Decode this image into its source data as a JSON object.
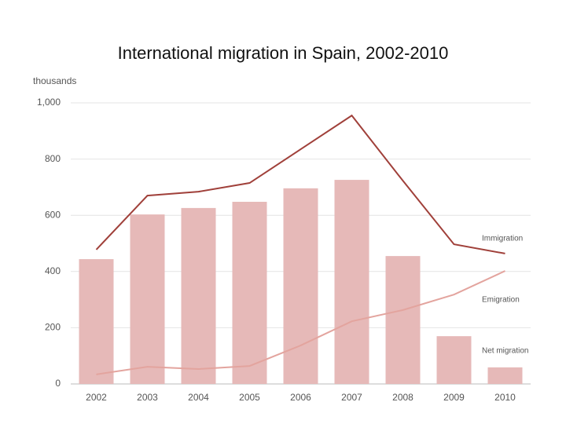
{
  "chart_data": {
    "type": "bar",
    "title": "International migration in Spain, 2002-2010",
    "y_label": "thousands",
    "categories": [
      "2002",
      "2003",
      "2004",
      "2005",
      "2006",
      "2007",
      "2008",
      "2009",
      "2010"
    ],
    "series": [
      {
        "name": "Immigration",
        "type": "line",
        "color": "#a0403a",
        "values": [
          478,
          670,
          684,
          715,
          835,
          955,
          723,
          497,
          464
        ]
      },
      {
        "name": "Emigration",
        "type": "line",
        "color": "#e3a49e",
        "values": [
          34,
          61,
          53,
          64,
          137,
          223,
          263,
          318,
          402
        ]
      },
      {
        "name": "Net migration",
        "type": "bar",
        "color": "#e6b9b8",
        "values": [
          444,
          603,
          626,
          648,
          696,
          726,
          455,
          170,
          59
        ]
      }
    ],
    "ylim": [
      0,
      1000
    ],
    "yticks": [
      0,
      200,
      400,
      600,
      800,
      {
        "value": 1000,
        "label": "1,000"
      }
    ],
    "grid": true
  }
}
